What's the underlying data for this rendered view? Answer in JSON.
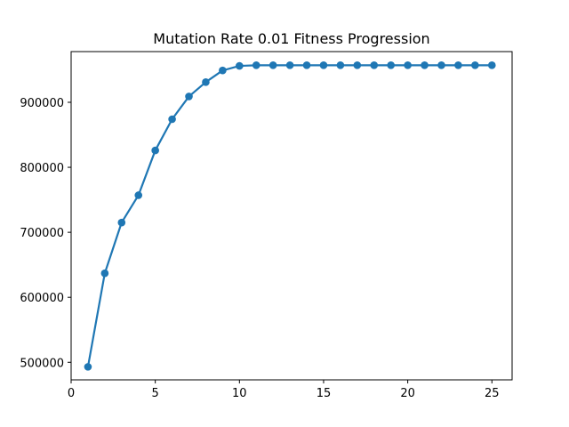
{
  "chart_data": {
    "type": "line",
    "title": "Mutation Rate 0.01 Fitness Progression",
    "xlabel": "",
    "ylabel": "",
    "xlim": [
      0,
      26.2
    ],
    "ylim": [
      473000,
      978000
    ],
    "x_ticks": [
      0,
      5,
      10,
      15,
      20,
      25
    ],
    "y_ticks": [
      500000,
      600000,
      700000,
      800000,
      900000
    ],
    "grid": false,
    "legend": "none",
    "colors": {
      "line": "#1f77b4",
      "marker": "#1f77b4"
    },
    "series": [
      {
        "x": [
          1,
          2,
          3,
          4,
          5,
          6,
          7,
          8,
          9,
          10,
          11,
          12,
          13,
          14,
          15,
          16,
          17,
          18,
          19,
          20,
          21,
          22,
          23,
          24,
          25
        ],
        "values": [
          493000,
          637000,
          715000,
          757000,
          826000,
          874000,
          909000,
          931000,
          949000,
          956000,
          957000,
          957000,
          957000,
          957000,
          957000,
          957000,
          957000,
          957000,
          957000,
          957000,
          957000,
          957000,
          957000,
          957000,
          957000
        ]
      }
    ]
  }
}
